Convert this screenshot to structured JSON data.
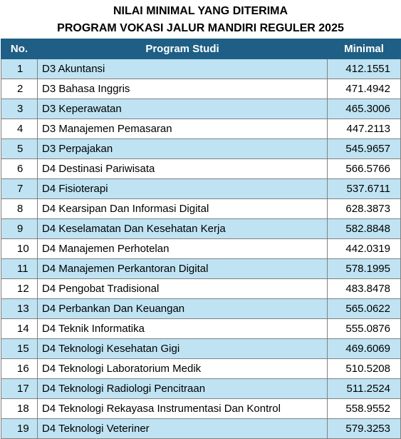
{
  "title": {
    "line1": "NILAI MINIMAL YANG DITERIMA",
    "line2": "PROGRAM VOKASI JALUR MANDIRI REGULER 2025"
  },
  "table": {
    "headers": {
      "no": "No.",
      "program": "Program Studi",
      "minimal": "Minimal"
    },
    "rows": [
      {
        "no": "1",
        "program": "D3 Akuntansi",
        "minimal": "412.1551"
      },
      {
        "no": "2",
        "program": "D3 Bahasa Inggris",
        "minimal": "471.4942"
      },
      {
        "no": "3",
        "program": "D3 Keperawatan",
        "minimal": "465.3006"
      },
      {
        "no": "4",
        "program": "D3 Manajemen Pemasaran",
        "minimal": "447.2113"
      },
      {
        "no": "5",
        "program": "D3 Perpajakan",
        "minimal": "545.9657"
      },
      {
        "no": "6",
        "program": "D4 Destinasi Pariwisata",
        "minimal": "566.5766"
      },
      {
        "no": "7",
        "program": "D4 Fisioterapi",
        "minimal": "537.6711"
      },
      {
        "no": "8",
        "program": "D4 Kearsipan Dan Informasi Digital",
        "minimal": "628.3873"
      },
      {
        "no": "9",
        "program": "D4 Keselamatan Dan Kesehatan Kerja",
        "minimal": "582.8848"
      },
      {
        "no": "10",
        "program": "D4 Manajemen Perhotelan",
        "minimal": "442.0319"
      },
      {
        "no": "11",
        "program": "D4 Manajemen Perkantoran Digital",
        "minimal": "578.1995"
      },
      {
        "no": "12",
        "program": "D4 Pengobat Tradisional",
        "minimal": "483.8478"
      },
      {
        "no": "13",
        "program": "D4 Perbankan Dan Keuangan",
        "minimal": "565.0622"
      },
      {
        "no": "14",
        "program": "D4 Teknik Informatika",
        "minimal": "555.0876"
      },
      {
        "no": "15",
        "program": "D4 Teknologi Kesehatan Gigi",
        "minimal": "469.6069"
      },
      {
        "no": "16",
        "program": "D4 Teknologi Laboratorium Medik",
        "minimal": "510.5208"
      },
      {
        "no": "17",
        "program": "D4 Teknologi Radiologi Pencitraan",
        "minimal": "511.2524"
      },
      {
        "no": "18",
        "program": "D4 Teknologi Rekayasa Instrumentasi Dan Kontrol",
        "minimal": "558.9552"
      },
      {
        "no": "19",
        "program": "D4 Teknologi Veteriner",
        "minimal": "579.3253"
      }
    ]
  },
  "colors": {
    "header_bg": "#1f5f85",
    "header_text": "#ffffff",
    "row_band": "#bfe3f3",
    "row_plain": "#ffffff",
    "grid_line": "#808080"
  }
}
